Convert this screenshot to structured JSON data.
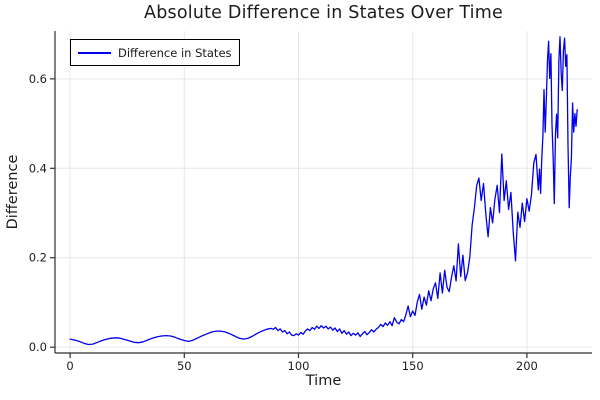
{
  "chart_data": {
    "type": "line",
    "title": "Absolute Difference in States Over Time",
    "xlabel": "Time",
    "ylabel": "Difference",
    "legend": {
      "position": "top-left",
      "entries": [
        {
          "label": "Difference in States",
          "color": "#0000ee"
        }
      ]
    },
    "xlim": [
      -6.6,
      228.5
    ],
    "ylim": [
      -0.013,
      0.707
    ],
    "xticks": [
      0,
      50,
      100,
      150,
      200
    ],
    "xtick_labels": [
      "0",
      "50",
      "100",
      "150",
      "200"
    ],
    "yticks": [
      0.0,
      0.2,
      0.4,
      0.6
    ],
    "ytick_labels": [
      "0.0",
      "0.2",
      "0.4",
      "0.6"
    ],
    "grid": true,
    "series": [
      {
        "name": "Difference in States",
        "color": "#0000ee",
        "x": [
          0,
          2,
          4,
          6,
          8,
          10,
          12,
          14,
          16,
          18,
          20,
          22,
          24,
          26,
          28,
          30,
          32,
          34,
          36,
          38,
          40,
          42,
          44,
          46,
          48,
          50,
          52,
          54,
          56,
          58,
          60,
          62,
          64,
          66,
          68,
          70,
          72,
          74,
          76,
          78,
          80,
          82,
          84,
          86,
          88,
          89,
          90,
          91,
          92,
          93,
          94,
          95,
          96,
          97,
          98,
          99,
          100,
          101,
          102,
          103,
          104,
          105,
          106,
          107,
          108,
          109,
          110,
          111,
          112,
          113,
          114,
          115,
          116,
          117,
          118,
          119,
          120,
          121,
          122,
          123,
          124,
          125,
          126,
          127,
          128,
          129,
          130,
          131,
          132,
          133,
          134,
          135,
          136,
          137,
          138,
          139,
          140,
          141,
          142,
          143,
          144,
          145,
          146,
          147,
          148,
          149,
          150,
          151,
          152,
          153,
          154,
          155,
          156,
          157,
          158,
          159,
          160,
          161,
          162,
          163,
          164,
          165,
          166,
          167,
          168,
          169,
          170,
          171,
          172,
          173,
          174,
          175,
          176,
          177,
          178,
          179,
          180,
          181,
          182,
          183,
          184,
          185,
          186,
          187,
          188,
          189,
          190,
          191,
          192,
          193,
          194,
          195,
          196,
          197,
          198,
          199,
          200,
          201,
          202,
          203,
          204,
          205,
          205.5,
          206,
          206.5,
          207,
          207.5,
          208,
          208.5,
          209,
          209.5,
          210,
          210.5,
          211,
          211.5,
          212,
          212.5,
          213,
          213.5,
          214,
          214.5,
          215,
          215.5,
          216,
          216.5,
          217,
          217.5,
          218,
          218.5,
          219,
          219.5,
          220,
          220.5,
          221,
          221.5,
          222
        ],
        "y": [
          0.018,
          0.016,
          0.013,
          0.009,
          0.006,
          0.007,
          0.011,
          0.015,
          0.018,
          0.02,
          0.021,
          0.02,
          0.017,
          0.014,
          0.011,
          0.01,
          0.012,
          0.016,
          0.02,
          0.023,
          0.025,
          0.026,
          0.025,
          0.022,
          0.018,
          0.015,
          0.013,
          0.016,
          0.021,
          0.026,
          0.03,
          0.034,
          0.036,
          0.036,
          0.034,
          0.03,
          0.025,
          0.02,
          0.018,
          0.02,
          0.025,
          0.031,
          0.036,
          0.04,
          0.042,
          0.04,
          0.044,
          0.037,
          0.041,
          0.034,
          0.037,
          0.03,
          0.034,
          0.027,
          0.026,
          0.03,
          0.027,
          0.033,
          0.029,
          0.036,
          0.041,
          0.037,
          0.044,
          0.04,
          0.047,
          0.042,
          0.048,
          0.043,
          0.047,
          0.041,
          0.045,
          0.038,
          0.043,
          0.035,
          0.041,
          0.031,
          0.037,
          0.029,
          0.034,
          0.026,
          0.031,
          0.027,
          0.032,
          0.024,
          0.03,
          0.035,
          0.028,
          0.033,
          0.039,
          0.034,
          0.04,
          0.044,
          0.051,
          0.046,
          0.054,
          0.049,
          0.057,
          0.048,
          0.066,
          0.056,
          0.052,
          0.062,
          0.057,
          0.072,
          0.092,
          0.068,
          0.081,
          0.071,
          0.101,
          0.118,
          0.085,
          0.112,
          0.094,
          0.126,
          0.104,
          0.131,
          0.144,
          0.109,
          0.166,
          0.121,
          0.172,
          0.134,
          0.124,
          0.156,
          0.182,
          0.148,
          0.231,
          0.158,
          0.206,
          0.149,
          0.166,
          0.201,
          0.272,
          0.312,
          0.362,
          0.378,
          0.328,
          0.366,
          0.298,
          0.247,
          0.312,
          0.278,
          0.331,
          0.362,
          0.301,
          0.432,
          0.328,
          0.372,
          0.308,
          0.346,
          0.258,
          0.193,
          0.302,
          0.268,
          0.322,
          0.281,
          0.332,
          0.304,
          0.342,
          0.412,
          0.431,
          0.352,
          0.398,
          0.344,
          0.418,
          0.472,
          0.576,
          0.481,
          0.553,
          0.641,
          0.684,
          0.601,
          0.656,
          0.498,
          0.421,
          0.321,
          0.478,
          0.521,
          0.468,
          0.642,
          0.694,
          0.612,
          0.574,
          0.662,
          0.691,
          0.628,
          0.654,
          0.452,
          0.312,
          0.382,
          0.421,
          0.546,
          0.481,
          0.522,
          0.494,
          0.531
        ]
      }
    ]
  },
  "style": {
    "series_color": "#0000ee",
    "grid_color": "#e7e7e7",
    "axis_color": "#2f2f2f",
    "tick_text_color": "#1e1e1e",
    "background": "#ffffff"
  }
}
